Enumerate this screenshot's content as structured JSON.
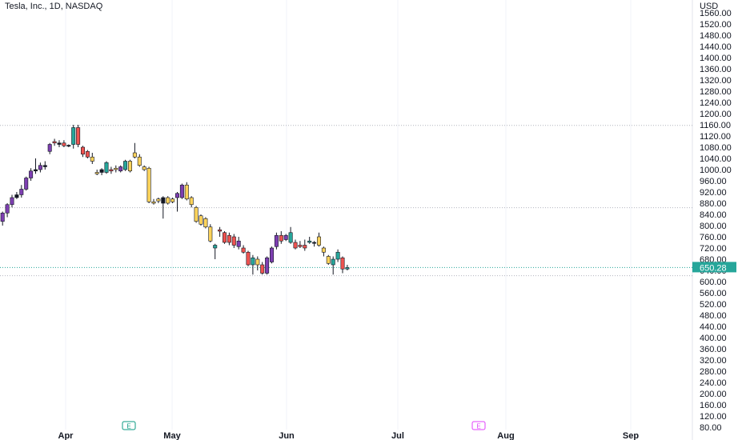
{
  "chart_data": {
    "type": "candlestick",
    "title": "Tesla, Inc., 1D, NASDAQ",
    "currency": "USD",
    "last_price": "650.28",
    "ylim": [
      80,
      1580
    ],
    "y_ticks": [
      "1560.00",
      "1520.00",
      "1480.00",
      "1440.00",
      "1400.00",
      "1360.00",
      "1320.00",
      "1280.00",
      "1240.00",
      "1200.00",
      "1160.00",
      "1120.00",
      "1080.00",
      "1040.00",
      "1000.00",
      "960.00",
      "920.00",
      "880.00",
      "840.00",
      "800.00",
      "760.00",
      "720.00",
      "680.00",
      "640.00",
      "600.00",
      "560.00",
      "520.00",
      "480.00",
      "440.00",
      "400.00",
      "360.00",
      "320.00",
      "280.00",
      "240.00",
      "200.00",
      "160.00",
      "120.00",
      "80.00"
    ],
    "x_ticks": [
      "Apr",
      "May",
      "Jun",
      "Jul",
      "Aug",
      "Sep"
    ],
    "event_markers": [
      {
        "label": "E",
        "color": "#089981"
      },
      {
        "label": "E",
        "color": "#e040fb"
      }
    ],
    "reference_lines": [
      1158,
      864,
      621
    ],
    "colors": {
      "purple": "#7e3fb1",
      "green": "#26a69a",
      "red": "#ef5350",
      "yellow": "#fdd35b",
      "black": "#131722"
    },
    "candles": [
      {
        "o": 815,
        "h": 850,
        "l": 800,
        "c": 845,
        "col": "purple"
      },
      {
        "o": 845,
        "h": 880,
        "l": 830,
        "c": 875,
        "col": "purple"
      },
      {
        "o": 875,
        "h": 910,
        "l": 865,
        "c": 900,
        "col": "purple"
      },
      {
        "o": 900,
        "h": 920,
        "l": 895,
        "c": 910,
        "col": "black"
      },
      {
        "o": 910,
        "h": 945,
        "l": 900,
        "c": 930,
        "col": "purple"
      },
      {
        "o": 930,
        "h": 975,
        "l": 925,
        "c": 970,
        "col": "purple"
      },
      {
        "o": 970,
        "h": 1005,
        "l": 960,
        "c": 995,
        "col": "purple"
      },
      {
        "o": 995,
        "h": 1040,
        "l": 985,
        "c": 1000,
        "col": "black"
      },
      {
        "o": 1000,
        "h": 1025,
        "l": 990,
        "c": 1015,
        "col": "purple"
      },
      {
        "o": 1015,
        "h": 1030,
        "l": 1000,
        "c": 1010,
        "col": "black"
      },
      {
        "o": 1065,
        "h": 1095,
        "l": 1055,
        "c": 1090,
        "col": "purple"
      },
      {
        "o": 1095,
        "h": 1110,
        "l": 1085,
        "c": 1100,
        "col": "red"
      },
      {
        "o": 1095,
        "h": 1105,
        "l": 1080,
        "c": 1090,
        "col": "black"
      },
      {
        "o": 1095,
        "h": 1105,
        "l": 1080,
        "c": 1085,
        "col": "red"
      },
      {
        "o": 1085,
        "h": 1090,
        "l": 1080,
        "c": 1087,
        "col": "black"
      },
      {
        "o": 1090,
        "h": 1160,
        "l": 1075,
        "c": 1150,
        "col": "green"
      },
      {
        "o": 1150,
        "h": 1160,
        "l": 1080,
        "c": 1090,
        "col": "red"
      },
      {
        "o": 1080,
        "h": 1085,
        "l": 1045,
        "c": 1055,
        "col": "red"
      },
      {
        "o": 1065,
        "h": 1070,
        "l": 1040,
        "c": 1045,
        "col": "red"
      },
      {
        "o": 1045,
        "h": 1060,
        "l": 1020,
        "c": 1030,
        "col": "yellow"
      },
      {
        "o": 990,
        "h": 1000,
        "l": 980,
        "c": 985,
        "col": "yellow"
      },
      {
        "o": 990,
        "h": 1005,
        "l": 980,
        "c": 1000,
        "col": "black"
      },
      {
        "o": 990,
        "h": 1030,
        "l": 985,
        "c": 1025,
        "col": "green"
      },
      {
        "o": 1000,
        "h": 1010,
        "l": 985,
        "c": 995,
        "col": "red"
      },
      {
        "o": 1000,
        "h": 1015,
        "l": 990,
        "c": 1005,
        "col": "yellow"
      },
      {
        "o": 995,
        "h": 1015,
        "l": 990,
        "c": 1010,
        "col": "purple"
      },
      {
        "o": 1000,
        "h": 1035,
        "l": 995,
        "c": 1030,
        "col": "green"
      },
      {
        "o": 1030,
        "h": 1035,
        "l": 990,
        "c": 995,
        "col": "yellow"
      },
      {
        "o": 1060,
        "h": 1095,
        "l": 1040,
        "c": 1045,
        "col": "yellow"
      },
      {
        "o": 1045,
        "h": 1055,
        "l": 1010,
        "c": 1015,
        "col": "yellow"
      },
      {
        "o": 1010,
        "h": 1015,
        "l": 995,
        "c": 1000,
        "col": "yellow"
      },
      {
        "o": 1005,
        "h": 1010,
        "l": 880,
        "c": 885,
        "col": "yellow"
      },
      {
        "o": 885,
        "h": 895,
        "l": 875,
        "c": 880,
        "col": "yellow"
      },
      {
        "o": 895,
        "h": 900,
        "l": 880,
        "c": 888,
        "col": "yellow"
      },
      {
        "o": 900,
        "h": 905,
        "l": 825,
        "c": 880,
        "col": "black"
      },
      {
        "o": 880,
        "h": 905,
        "l": 875,
        "c": 900,
        "col": "yellow"
      },
      {
        "o": 895,
        "h": 900,
        "l": 880,
        "c": 885,
        "col": "yellow"
      },
      {
        "o": 900,
        "h": 920,
        "l": 850,
        "c": 915,
        "col": "purple"
      },
      {
        "o": 945,
        "h": 950,
        "l": 895,
        "c": 900,
        "col": "purple"
      },
      {
        "o": 945,
        "h": 955,
        "l": 890,
        "c": 895,
        "col": "yellow"
      },
      {
        "o": 900,
        "h": 905,
        "l": 865,
        "c": 875,
        "col": "yellow"
      },
      {
        "o": 865,
        "h": 870,
        "l": 810,
        "c": 815,
        "col": "yellow"
      },
      {
        "o": 835,
        "h": 840,
        "l": 800,
        "c": 805,
        "col": "yellow"
      },
      {
        "o": 825,
        "h": 830,
        "l": 790,
        "c": 795,
        "col": "yellow"
      },
      {
        "o": 795,
        "h": 805,
        "l": 740,
        "c": 745,
        "col": "yellow"
      },
      {
        "o": 720,
        "h": 735,
        "l": 680,
        "c": 730,
        "col": "green"
      },
      {
        "o": 780,
        "h": 795,
        "l": 760,
        "c": 785,
        "col": "red"
      },
      {
        "o": 775,
        "h": 780,
        "l": 735,
        "c": 740,
        "col": "red"
      },
      {
        "o": 740,
        "h": 775,
        "l": 730,
        "c": 765,
        "col": "red"
      },
      {
        "o": 760,
        "h": 770,
        "l": 720,
        "c": 730,
        "col": "red"
      },
      {
        "o": 725,
        "h": 760,
        "l": 715,
        "c": 745,
        "col": "purple"
      },
      {
        "o": 720,
        "h": 730,
        "l": 700,
        "c": 705,
        "col": "red"
      },
      {
        "o": 705,
        "h": 710,
        "l": 655,
        "c": 660,
        "col": "red"
      },
      {
        "o": 660,
        "h": 695,
        "l": 625,
        "c": 685,
        "col": "green"
      },
      {
        "o": 680,
        "h": 690,
        "l": 640,
        "c": 660,
        "col": "yellow"
      },
      {
        "o": 660,
        "h": 670,
        "l": 625,
        "c": 630,
        "col": "red"
      },
      {
        "o": 630,
        "h": 690,
        "l": 625,
        "c": 685,
        "col": "purple"
      },
      {
        "o": 670,
        "h": 725,
        "l": 665,
        "c": 720,
        "col": "purple"
      },
      {
        "o": 725,
        "h": 775,
        "l": 715,
        "c": 765,
        "col": "purple"
      },
      {
        "o": 765,
        "h": 780,
        "l": 735,
        "c": 745,
        "col": "red"
      },
      {
        "o": 750,
        "h": 770,
        "l": 745,
        "c": 765,
        "col": "purple"
      },
      {
        "o": 740,
        "h": 795,
        "l": 735,
        "c": 775,
        "col": "green"
      },
      {
        "o": 740,
        "h": 750,
        "l": 715,
        "c": 720,
        "col": "red"
      },
      {
        "o": 730,
        "h": 745,
        "l": 720,
        "c": 725,
        "col": "red"
      },
      {
        "o": 720,
        "h": 750,
        "l": 710,
        "c": 730,
        "col": "red"
      },
      {
        "o": 740,
        "h": 760,
        "l": 735,
        "c": 745,
        "col": "green"
      },
      {
        "o": 740,
        "h": 745,
        "l": 725,
        "c": 740,
        "col": "black"
      },
      {
        "o": 760,
        "h": 775,
        "l": 725,
        "c": 730,
        "col": "yellow"
      },
      {
        "o": 720,
        "h": 725,
        "l": 690,
        "c": 705,
        "col": "yellow"
      },
      {
        "o": 690,
        "h": 695,
        "l": 660,
        "c": 665,
        "col": "yellow"
      },
      {
        "o": 660,
        "h": 690,
        "l": 625,
        "c": 680,
        "col": "green"
      },
      {
        "o": 680,
        "h": 715,
        "l": 670,
        "c": 705,
        "col": "green"
      },
      {
        "o": 685,
        "h": 690,
        "l": 630,
        "c": 645,
        "col": "red"
      },
      {
        "o": 645,
        "h": 660,
        "l": 640,
        "c": 650,
        "col": "green"
      }
    ]
  }
}
